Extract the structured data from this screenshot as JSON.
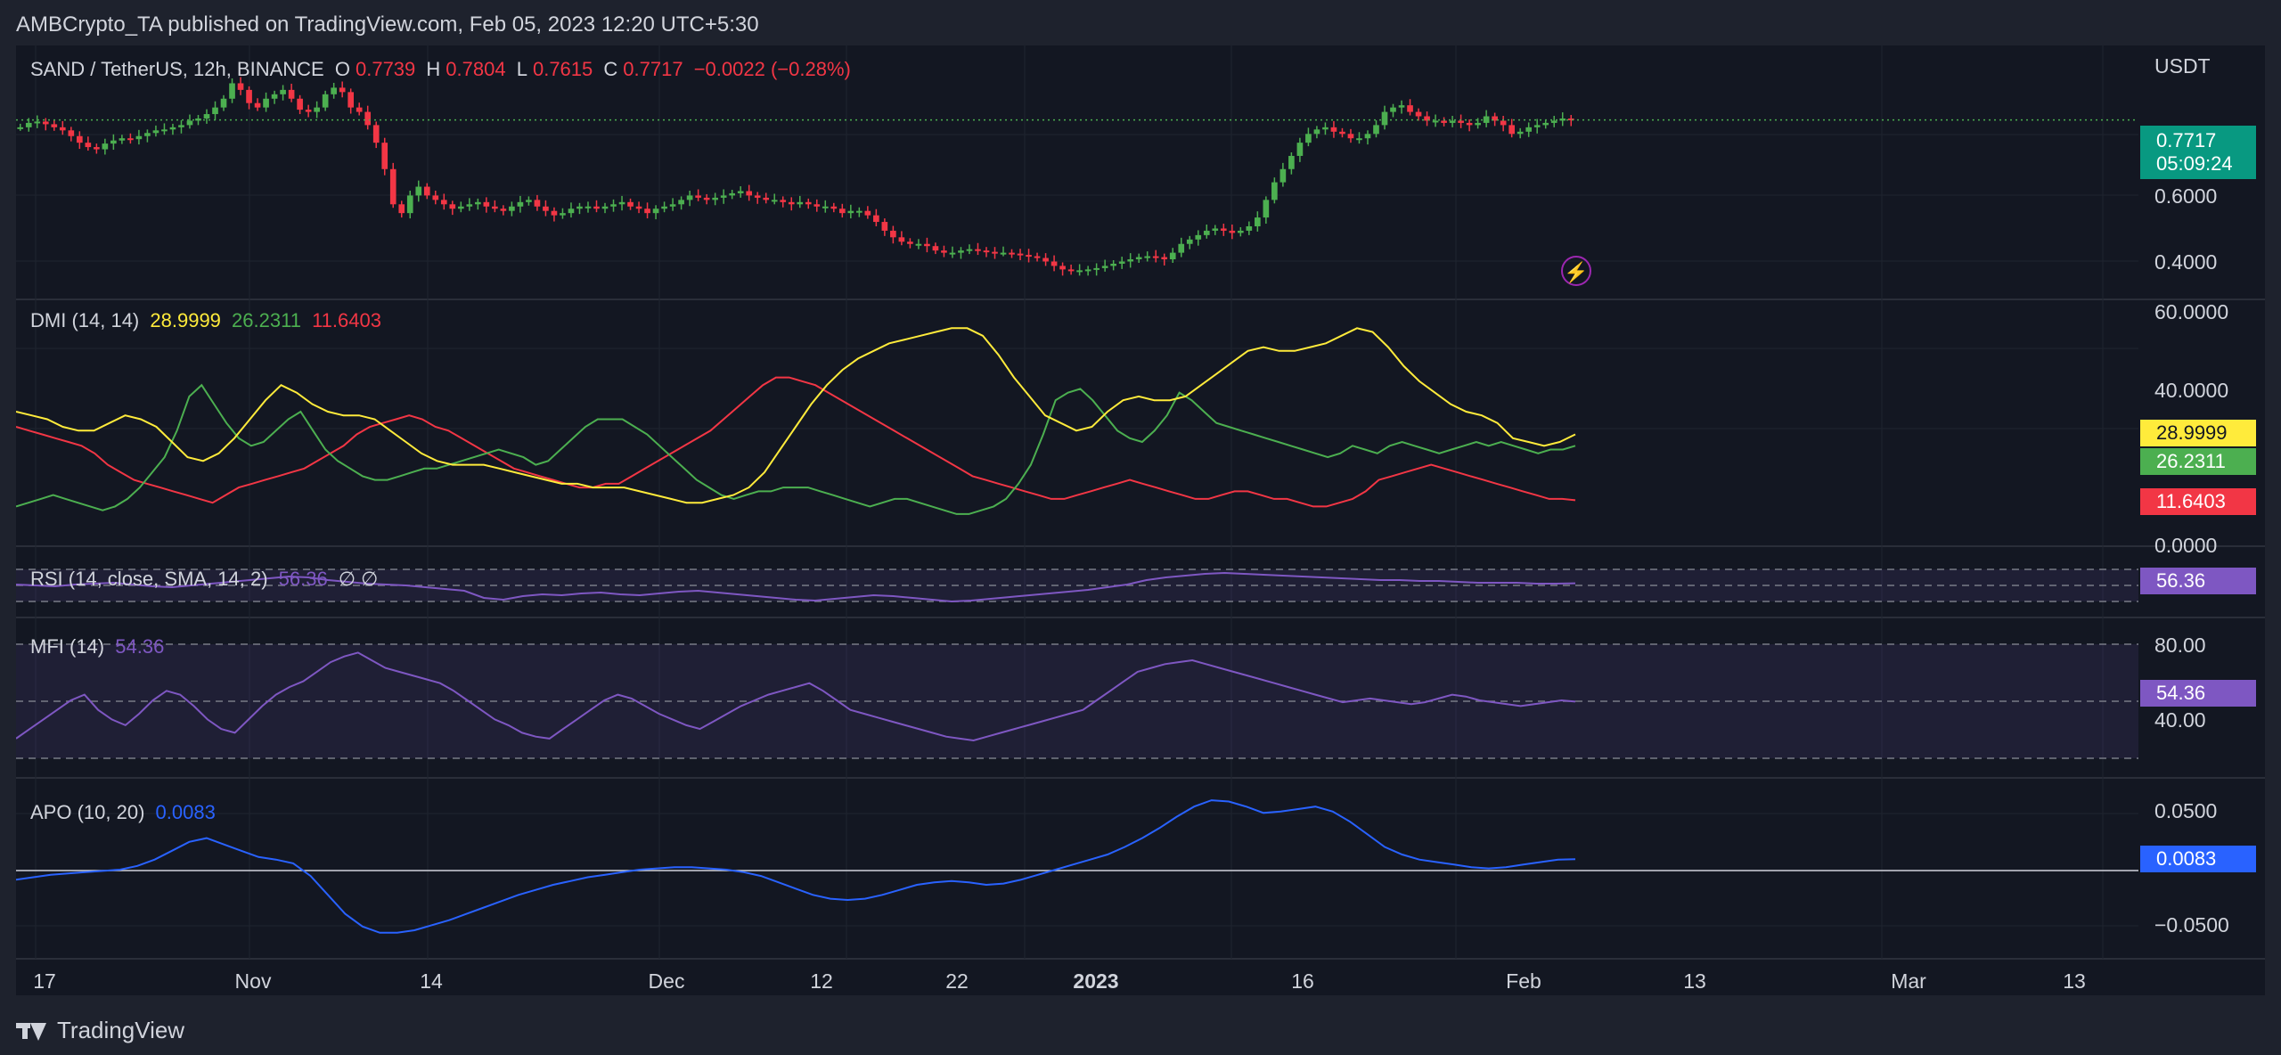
{
  "header": {
    "publish_line": "AMBCrypto_TA published on TradingView.com, Feb 05, 2023 12:20 UTC+5:30"
  },
  "footer": {
    "brand": "TradingView"
  },
  "colors": {
    "up": "#4caf50",
    "down": "#f23645",
    "background": "#131722",
    "page": "#1e222d",
    "grid": "#2a2e39",
    "text": "#d1d4dc",
    "adx": "#ffeb3b",
    "plus_di": "#4caf50",
    "minus_di": "#f23645",
    "rsi": "#7e57c2",
    "mfi": "#7e57c2",
    "apo": "#2962ff"
  },
  "price_pane": {
    "symbol": "SAND / TetherUS, 12h, BINANCE",
    "o_label": "O",
    "o": "0.7739",
    "h_label": "H",
    "h": "0.7804",
    "l_label": "L",
    "l": "0.7615",
    "c_label": "C",
    "c": "0.7717",
    "change": "−0.0022 (−0.28%)",
    "currency": "USDT",
    "last_price": "0.7717",
    "countdown": "05:09:24",
    "axis_ticks": [
      "0.6000",
      "0.4000"
    ],
    "flash_icon": "lightning-icon"
  },
  "dmi_pane": {
    "label": "DMI (14, 14)",
    "adx": "28.9999",
    "plus_di": "26.2311",
    "minus_di": "11.6403",
    "axis_ticks": [
      "60.0000",
      "40.0000",
      "0.0000"
    ]
  },
  "rsi_pane": {
    "label": "RSI (14, close, SMA, 14, 2)",
    "value": "56.36",
    "extra": "∅ ∅"
  },
  "mfi_pane": {
    "label": "MFI (14)",
    "value": "54.36",
    "axis_ticks": [
      "80.00",
      "40.00"
    ]
  },
  "apo_pane": {
    "label": "APO (10, 20)",
    "value": "0.0083",
    "axis_ticks": [
      "0.0500",
      "−0.0500"
    ]
  },
  "time_axis": [
    "17",
    "Nov",
    "14",
    "Dec",
    "12",
    "22",
    "2023",
    "16",
    "Feb",
    "13",
    "Mar",
    "13"
  ],
  "chart_data": [
    {
      "type": "candlestick",
      "title": "SAND / TetherUS, 12h, BINANCE",
      "ylabel": "USDT",
      "ylim": [
        0.37,
        0.86
      ],
      "x_range": [
        0,
        200
      ],
      "close_series": [
        0.755,
        0.765,
        0.768,
        0.762,
        0.755,
        0.748,
        0.735,
        0.72,
        0.71,
        0.705,
        0.718,
        0.725,
        0.73,
        0.728,
        0.735,
        0.742,
        0.748,
        0.75,
        0.755,
        0.76,
        0.77,
        0.775,
        0.785,
        0.8,
        0.82,
        0.855,
        0.84,
        0.81,
        0.8,
        0.82,
        0.83,
        0.84,
        0.82,
        0.795,
        0.79,
        0.8,
        0.83,
        0.845,
        0.835,
        0.8,
        0.79,
        0.76,
        0.72,
        0.66,
        0.58,
        0.56,
        0.6,
        0.62,
        0.6,
        0.59,
        0.58,
        0.57,
        0.575,
        0.58,
        0.585,
        0.575,
        0.57,
        0.565,
        0.575,
        0.585,
        0.59,
        0.575,
        0.565,
        0.555,
        0.56,
        0.57,
        0.575,
        0.575,
        0.57,
        0.575,
        0.58,
        0.585,
        0.575,
        0.57,
        0.56,
        0.57,
        0.575,
        0.58,
        0.59,
        0.6,
        0.595,
        0.59,
        0.595,
        0.6,
        0.605,
        0.61,
        0.6,
        0.595,
        0.59,
        0.59,
        0.585,
        0.58,
        0.585,
        0.58,
        0.575,
        0.575,
        0.57,
        0.56,
        0.565,
        0.565,
        0.555,
        0.54,
        0.52,
        0.505,
        0.495,
        0.49,
        0.49,
        0.485,
        0.475,
        0.47,
        0.47,
        0.475,
        0.478,
        0.475,
        0.472,
        0.47,
        0.47,
        0.468,
        0.465,
        0.462,
        0.458,
        0.45,
        0.44,
        0.432,
        0.428,
        0.43,
        0.432,
        0.435,
        0.44,
        0.445,
        0.45,
        0.455,
        0.46,
        0.462,
        0.46,
        0.455,
        0.47,
        0.49,
        0.5,
        0.51,
        0.52,
        0.525,
        0.52,
        0.515,
        0.52,
        0.53,
        0.55,
        0.59,
        0.63,
        0.66,
        0.69,
        0.72,
        0.74,
        0.75,
        0.755,
        0.745,
        0.74,
        0.73,
        0.73,
        0.74,
        0.76,
        0.79,
        0.8,
        0.805,
        0.79,
        0.78,
        0.77,
        0.77,
        0.765,
        0.77,
        0.765,
        0.76,
        0.765,
        0.78,
        0.77,
        0.76,
        0.74,
        0.745,
        0.755,
        0.76,
        0.765,
        0.77,
        0.775,
        0.7717
      ]
    },
    {
      "type": "line",
      "title": "DMI (14, 14)",
      "ylim": [
        0,
        62
      ],
      "series": [
        {
          "name": "ADX",
          "values": [
            35,
            34,
            33,
            31,
            30,
            30,
            32,
            34,
            33,
            31,
            27,
            23,
            22,
            24,
            28,
            33,
            38,
            42,
            40,
            37,
            35,
            34,
            34,
            33,
            30,
            27,
            24,
            22,
            21,
            21,
            21,
            20,
            19,
            18,
            17,
            16,
            16,
            15,
            15,
            15,
            14,
            13,
            12,
            11,
            11,
            12,
            13,
            15,
            19,
            25,
            31,
            37,
            42,
            46,
            49,
            51,
            53,
            54,
            55,
            56,
            57,
            57,
            55,
            50,
            44,
            39,
            34,
            32,
            30,
            31,
            35,
            38,
            39,
            38,
            38,
            39,
            42,
            45,
            48,
            51,
            52,
            51,
            51,
            52,
            53,
            55,
            57,
            56,
            52,
            47,
            43,
            40,
            37,
            35,
            34,
            32,
            28,
            27,
            26,
            27,
            29
          ]
        },
        {
          "name": "+DI",
          "values": [
            10,
            11,
            12,
            13,
            12,
            11,
            10,
            9,
            10,
            12,
            15,
            19,
            23,
            30,
            39,
            42,
            37,
            32,
            28,
            26,
            27,
            30,
            33,
            35,
            30,
            25,
            22,
            20,
            18,
            17,
            17,
            18,
            19,
            20,
            20,
            21,
            22,
            23,
            24,
            25,
            24,
            23,
            21,
            22,
            25,
            28,
            31,
            33,
            33,
            33,
            31,
            29,
            26,
            23,
            20,
            17,
            15,
            13,
            12,
            13,
            14,
            14,
            15,
            15,
            15,
            14,
            13,
            12,
            11,
            10,
            11,
            12,
            12,
            11,
            10,
            9,
            8,
            8,
            9,
            10,
            12,
            16,
            21,
            29,
            38,
            40,
            41,
            38,
            34,
            30,
            28,
            27,
            30,
            34,
            40,
            38,
            35,
            32,
            31,
            30,
            29,
            28,
            27,
            26,
            25,
            24,
            23,
            24,
            26,
            25,
            24,
            26,
            27,
            26,
            25,
            24,
            25,
            26,
            27,
            26,
            27,
            26,
            25,
            24,
            25,
            25,
            26
          ]
        },
        {
          "name": "-DI",
          "values": [
            31,
            30,
            29,
            28,
            27,
            26,
            24,
            21,
            19,
            17,
            16,
            15,
            14,
            13,
            12,
            11,
            13,
            15,
            16,
            17,
            18,
            19,
            20,
            22,
            24,
            26,
            29,
            31,
            32,
            33,
            34,
            33,
            31,
            30,
            28,
            26,
            24,
            22,
            20,
            19,
            18,
            17,
            16,
            15,
            15,
            16,
            16,
            18,
            20,
            22,
            24,
            26,
            28,
            30,
            33,
            36,
            39,
            42,
            44,
            44,
            43,
            42,
            40,
            38,
            36,
            34,
            32,
            30,
            28,
            26,
            24,
            22,
            20,
            18,
            17,
            16,
            15,
            14,
            13,
            12,
            12,
            13,
            14,
            15,
            16,
            17,
            16,
            15,
            14,
            13,
            12,
            12,
            13,
            14,
            14,
            13,
            12,
            12,
            11,
            10,
            10,
            11,
            12,
            14,
            17,
            18,
            19,
            20,
            21,
            20,
            19,
            18,
            17,
            16,
            15,
            14,
            13,
            12,
            12,
            11.6403
          ]
        }
      ]
    },
    {
      "type": "line",
      "title": "RSI (14, close, SMA, 14, 2)",
      "ylim": [
        0,
        100
      ],
      "series": [
        {
          "name": "RSI",
          "values": [
            55,
            54,
            53,
            55,
            56,
            57,
            55,
            53,
            52,
            54,
            56,
            58,
            60,
            62,
            64,
            63,
            60,
            58,
            56,
            55,
            54,
            52,
            50,
            48,
            40,
            38,
            42,
            44,
            43,
            45,
            46,
            44,
            43,
            45,
            47,
            48,
            46,
            44,
            42,
            40,
            38,
            37,
            39,
            41,
            43,
            42,
            40,
            38,
            36,
            37,
            39,
            41,
            43,
            45,
            47,
            49,
            52,
            55,
            60,
            63,
            65,
            67,
            68,
            67,
            66,
            65,
            64,
            63,
            62,
            61,
            60,
            60,
            59,
            59,
            58,
            57,
            57,
            57,
            56,
            56,
            56.36
          ]
        }
      ]
    },
    {
      "type": "line",
      "title": "MFI (14)",
      "ylim": [
        20,
        90
      ],
      "series": [
        {
          "name": "MFI",
          "values": [
            35,
            40,
            45,
            50,
            55,
            58,
            50,
            45,
            42,
            48,
            55,
            60,
            58,
            52,
            45,
            40,
            38,
            45,
            52,
            58,
            62,
            65,
            70,
            75,
            78,
            80,
            76,
            72,
            70,
            68,
            66,
            64,
            60,
            55,
            50,
            45,
            42,
            38,
            36,
            35,
            40,
            45,
            50,
            55,
            58,
            56,
            52,
            48,
            45,
            42,
            40,
            44,
            48,
            52,
            55,
            58,
            60,
            62,
            64,
            60,
            55,
            50,
            48,
            46,
            44,
            42,
            40,
            38,
            36,
            35,
            34,
            36,
            38,
            40,
            42,
            44,
            46,
            48,
            50,
            55,
            60,
            65,
            70,
            72,
            74,
            75,
            76,
            74,
            72,
            70,
            68,
            66,
            64,
            62,
            60,
            58,
            56,
            54,
            55,
            56,
            55,
            54,
            53,
            54,
            56,
            58,
            57,
            55,
            54,
            53,
            52,
            53,
            54,
            55,
            54.36
          ]
        }
      ]
    },
    {
      "type": "line",
      "title": "APO (10, 20)",
      "ylim": [
        -0.06,
        0.06
      ],
      "series": [
        {
          "name": "APO",
          "values": [
            -0.008,
            -0.006,
            -0.004,
            -0.003,
            -0.002,
            -0.001,
            0,
            0.003,
            0.008,
            0.015,
            0.022,
            0.025,
            0.02,
            0.015,
            0.01,
            0.008,
            0.005,
            -0.005,
            -0.02,
            -0.035,
            -0.045,
            -0.05,
            -0.05,
            -0.048,
            -0.044,
            -0.04,
            -0.035,
            -0.03,
            -0.025,
            -0.02,
            -0.016,
            -0.012,
            -0.009,
            -0.006,
            -0.004,
            -0.002,
            0,
            0.001,
            0.002,
            0.002,
            0.001,
            0,
            -0.002,
            -0.005,
            -0.01,
            -0.015,
            -0.02,
            -0.023,
            -0.024,
            -0.023,
            -0.02,
            -0.016,
            -0.012,
            -0.01,
            -0.009,
            -0.01,
            -0.012,
            -0.011,
            -0.008,
            -0.004,
            0,
            0.004,
            0.008,
            0.012,
            0.018,
            0.025,
            0.033,
            0.042,
            0.05,
            0.055,
            0.054,
            0.05,
            0.045,
            0.046,
            0.048,
            0.05,
            0.046,
            0.038,
            0.028,
            0.018,
            0.012,
            0.008,
            0.006,
            0.004,
            0.002,
            0.001,
            0.002,
            0.004,
            0.006,
            0.008,
            0.0083
          ]
        }
      ]
    }
  ]
}
